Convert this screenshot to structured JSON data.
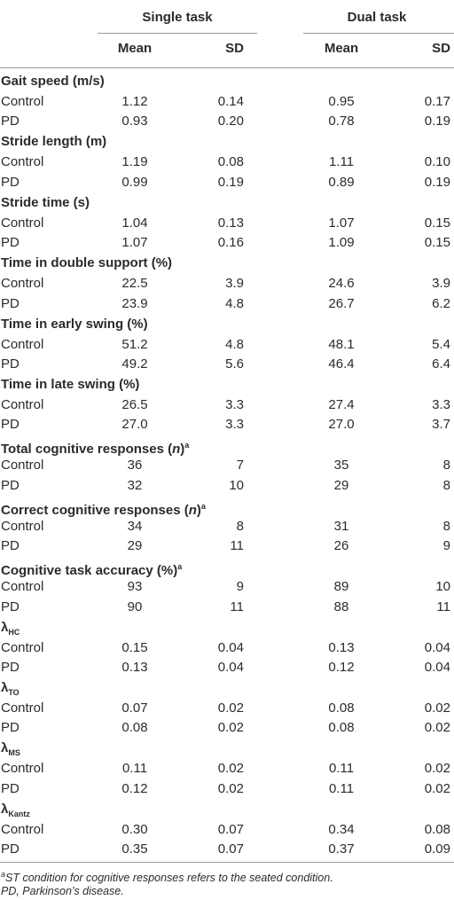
{
  "header": {
    "groups": [
      "Single task",
      "Dual task"
    ],
    "columns": [
      "Mean",
      "SD",
      "Mean",
      "SD"
    ]
  },
  "sections": [
    {
      "title": "Gait speed (m/s)",
      "rows": [
        [
          "Control",
          "1.12",
          "0.14",
          "0.95",
          "0.17"
        ],
        [
          "PD",
          "0.93",
          "0.20",
          "0.78",
          "0.19"
        ]
      ]
    },
    {
      "title": "Stride length (m)",
      "rows": [
        [
          "Control",
          "1.19",
          "0.08",
          "1.11",
          "0.10"
        ],
        [
          "PD",
          "0.99",
          "0.19",
          "0.89",
          "0.19"
        ]
      ]
    },
    {
      "title": "Stride time (s)",
      "rows": [
        [
          "Control",
          "1.04",
          "0.13",
          "1.07",
          "0.15"
        ],
        [
          "PD",
          "1.07",
          "0.16",
          "1.09",
          "0.15"
        ]
      ]
    },
    {
      "title": "Time in double support (%)",
      "rows": [
        [
          "Control",
          "22.5",
          "3.9",
          "24.6",
          "3.9"
        ],
        [
          "PD",
          "23.9",
          "4.8",
          "26.7",
          "6.2"
        ]
      ]
    },
    {
      "title": "Time in early swing (%)",
      "rows": [
        [
          "Control",
          "51.2",
          "4.8",
          "48.1",
          "5.4"
        ],
        [
          "PD",
          "49.2",
          "5.6",
          "46.4",
          "6.4"
        ]
      ]
    },
    {
      "title": "Time in late swing (%)",
      "rows": [
        [
          "Control",
          "26.5",
          "3.3",
          "27.4",
          "3.3"
        ],
        [
          "PD",
          "27.0",
          "3.3",
          "27.0",
          "3.7"
        ]
      ]
    },
    {
      "title": "Total cognitive responses (",
      "italic": "n",
      "end": ")",
      "note": "a",
      "rows": [
        [
          "Control",
          "36",
          "7",
          "35",
          "8"
        ],
        [
          "PD",
          "32",
          "10",
          "29",
          "8"
        ]
      ]
    },
    {
      "title": "Correct cognitive responses (",
      "italic": "n",
      "end": ")",
      "note": "a",
      "rows": [
        [
          "Control",
          "34",
          "8",
          "31",
          "8"
        ],
        [
          "PD",
          "29",
          "11",
          "26",
          "9"
        ]
      ]
    },
    {
      "title": "Cognitive task accuracy (%)",
      "note": "a",
      "rows": [
        [
          "Control",
          "93",
          "9",
          "89",
          "10"
        ],
        [
          "PD",
          "90",
          "11",
          "88",
          "11"
        ]
      ]
    },
    {
      "title": "λ",
      "sub": "HC",
      "rows": [
        [
          "Control",
          "0.15",
          "0.04",
          "0.13",
          "0.04"
        ],
        [
          "PD",
          "0.13",
          "0.04",
          "0.12",
          "0.04"
        ]
      ]
    },
    {
      "title": "λ",
      "sub": "TO",
      "rows": [
        [
          "Control",
          "0.07",
          "0.02",
          "0.08",
          "0.02"
        ],
        [
          "PD",
          "0.08",
          "0.02",
          "0.08",
          "0.02"
        ]
      ]
    },
    {
      "title": "λ",
      "sub": "MS",
      "rows": [
        [
          "Control",
          "0.11",
          "0.02",
          "0.11",
          "0.02"
        ],
        [
          "PD",
          "0.12",
          "0.02",
          "0.11",
          "0.02"
        ]
      ]
    },
    {
      "title": "λ",
      "sub": "Kantz",
      "rows": [
        [
          "Control",
          "0.30",
          "0.07",
          "0.34",
          "0.08"
        ],
        [
          "PD",
          "0.35",
          "0.07",
          "0.37",
          "0.09"
        ]
      ]
    }
  ],
  "footnotes": [
    {
      "mark": "a",
      "text": "ST condition for cognitive responses refers to the seated condition."
    },
    {
      "text": "PD, Parkinson’s disease."
    }
  ]
}
